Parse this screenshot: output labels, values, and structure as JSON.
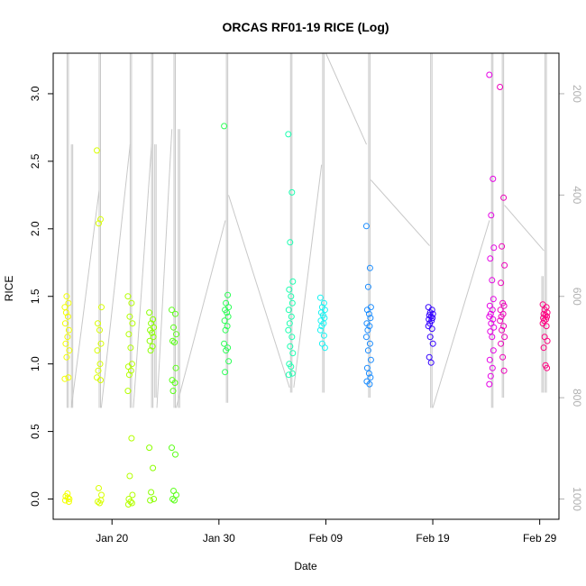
{
  "chart_data": {
    "type": "scatter",
    "title": "ORCAS RF01-19 RICE (Log)",
    "xlabel": "Date",
    "ylabel": "RICE",
    "x_ticks": [
      "Jan 20",
      "Jan 30",
      "Feb 09",
      "Feb 19",
      "Feb 29"
    ],
    "x_tick_day_offsets": [
      0,
      10,
      20,
      30,
      40
    ],
    "xlim_day_offsets": [
      -5.5,
      41.8
    ],
    "y_ticks": [
      "0.0",
      "0.5",
      "1.0",
      "1.5",
      "2.0",
      "2.5",
      "3.0"
    ],
    "ylim": [
      -0.15,
      3.3
    ],
    "y2_ticks": [
      "200",
      "400",
      "600",
      "800",
      "1000"
    ],
    "y2lim": [
      1040,
      120
    ],
    "grid": false,
    "legend": "none",
    "colors": {
      "track": "#c8c8c8",
      "axis": "#000000",
      "right_axis": "#b0b0b0"
    },
    "flights": [
      {
        "day": -4.2,
        "color": "#f2ff00",
        "values": [
          0.89,
          0.9,
          1.05,
          1.1,
          1.15,
          1.2,
          1.25,
          1.3,
          1.35,
          1.38,
          1.42,
          1.45,
          1.5,
          0.0,
          0.02,
          0.04,
          -0.02,
          -0.01,
          0.01
        ]
      },
      {
        "day": -1.2,
        "color": "#d8ff00",
        "values": [
          2.58,
          2.07,
          2.04,
          1.42,
          1.3,
          1.25,
          1.15,
          1.1,
          1.0,
          0.95,
          0.9,
          0.88,
          0.08,
          0.03,
          -0.02,
          -0.03,
          -0.01
        ]
      },
      {
        "day": 1.7,
        "color": "#b4ff00",
        "values": [
          1.5,
          1.45,
          1.35,
          1.3,
          1.22,
          1.12,
          1.0,
          0.98,
          0.95,
          0.92,
          0.8,
          0.45,
          0.17,
          0.03,
          0.0,
          -0.02,
          -0.03,
          -0.04
        ]
      },
      {
        "day": 3.7,
        "color": "#8cff00",
        "values": [
          1.38,
          1.33,
          1.3,
          1.27,
          1.25,
          1.23,
          1.2,
          1.17,
          1.13,
          1.1,
          0.38,
          0.23,
          0.05,
          0.0,
          -0.01
        ]
      },
      {
        "day": 5.8,
        "color": "#5cff1a",
        "values": [
          1.4,
          1.37,
          1.27,
          1.22,
          1.17,
          1.16,
          0.97,
          0.88,
          0.86,
          0.8,
          0.38,
          0.33,
          0.06,
          0.03,
          0.0,
          -0.01
        ]
      },
      {
        "day": 10.7,
        "color": "#2aff55",
        "values": [
          2.76,
          1.51,
          1.45,
          1.42,
          1.4,
          1.38,
          1.35,
          1.32,
          1.28,
          1.25,
          1.15,
          1.12,
          1.1,
          1.02,
          0.94
        ]
      },
      {
        "day": 16.7,
        "color": "#1affb0",
        "values": [
          2.7,
          2.27,
          1.9,
          1.61,
          1.55,
          1.5,
          1.45,
          1.4,
          1.35,
          1.3,
          1.25,
          1.2,
          1.13,
          1.08,
          1.0,
          0.98,
          0.93,
          0.92
        ]
      },
      {
        "day": 19.7,
        "color": "#18f4f4",
        "values": [
          1.49,
          1.45,
          1.42,
          1.4,
          1.38,
          1.36,
          1.34,
          1.32,
          1.3,
          1.28,
          1.25,
          1.21,
          1.15,
          1.12
        ]
      },
      {
        "day": 24.0,
        "color": "#1a8cff",
        "values": [
          2.02,
          1.71,
          1.57,
          1.42,
          1.4,
          1.37,
          1.34,
          1.3,
          1.28,
          1.25,
          1.2,
          1.15,
          1.1,
          1.03,
          0.97,
          0.93,
          0.9,
          0.87,
          0.85
        ]
      },
      {
        "day": 29.8,
        "color": "#3300ff",
        "values": [
          1.42,
          1.4,
          1.38,
          1.37,
          1.36,
          1.35,
          1.34,
          1.33,
          1.32,
          1.3,
          1.28,
          1.26,
          1.2,
          1.15,
          1.05,
          1.01
        ]
      },
      {
        "day": 35.5,
        "color": "#e600e6",
        "values": [
          3.14,
          2.37,
          2.1,
          1.86,
          1.78,
          1.62,
          1.48,
          1.43,
          1.4,
          1.37,
          1.35,
          1.33,
          1.3,
          1.27,
          1.24,
          1.2,
          1.1,
          1.03,
          0.97,
          0.91,
          0.85
        ]
      },
      {
        "day": 36.5,
        "color": "#ee00bb",
        "values": [
          3.05,
          2.23,
          1.87,
          1.73,
          1.6,
          1.45,
          1.43,
          1.4,
          1.37,
          1.35,
          1.32,
          1.28,
          1.25,
          1.2,
          1.15,
          1.05,
          0.95
        ]
      },
      {
        "day": 40.5,
        "color": "#ff0080",
        "values": [
          1.44,
          1.42,
          1.4,
          1.38,
          1.37,
          1.36,
          1.35,
          1.34,
          1.33,
          1.32,
          1.3,
          1.28,
          1.2,
          1.17,
          1.12,
          0.99,
          0.97
        ]
      }
    ],
    "altitude_tracks": [
      {
        "day": -4.2,
        "top": 120,
        "bottom": 820
      },
      {
        "day": -3.8,
        "top": 300,
        "bottom": 820
      },
      {
        "day": -1.2,
        "top": 120,
        "bottom": 820
      },
      {
        "day": 1.7,
        "top": 120,
        "bottom": 820
      },
      {
        "day": 3.7,
        "top": 120,
        "bottom": 820
      },
      {
        "day": 4.0,
        "top": 300,
        "bottom": 800
      },
      {
        "day": 5.8,
        "top": 120,
        "bottom": 820
      },
      {
        "day": 6.2,
        "top": 270,
        "bottom": 820
      },
      {
        "day": 10.7,
        "top": 120,
        "bottom": 810
      },
      {
        "day": 16.7,
        "top": 120,
        "bottom": 790
      },
      {
        "day": 19.7,
        "top": 120,
        "bottom": 790
      },
      {
        "day": 24.0,
        "top": 120,
        "bottom": 800
      },
      {
        "day": 29.8,
        "top": 120,
        "bottom": 820
      },
      {
        "day": 35.5,
        "top": 120,
        "bottom": 820
      },
      {
        "day": 36.5,
        "top": 120,
        "bottom": 800
      },
      {
        "day": 40.5,
        "top": 120,
        "bottom": 790
      },
      {
        "day": 40.2,
        "top": 560,
        "bottom": 790
      }
    ],
    "transit_lines": [
      [
        {
          "day": -3.8,
          "alt": 820
        },
        {
          "day": -1.2,
          "alt": 390
        }
      ],
      [
        {
          "day": -1.0,
          "alt": 820
        },
        {
          "day": 1.7,
          "alt": 300
        }
      ],
      [
        {
          "day": 2.0,
          "alt": 820
        },
        {
          "day": 3.7,
          "alt": 300
        }
      ],
      [
        {
          "day": 4.2,
          "alt": 820
        },
        {
          "day": 5.6,
          "alt": 270
        }
      ],
      [
        {
          "day": 6.0,
          "alt": 820
        },
        {
          "day": 10.6,
          "alt": 450
        }
      ],
      [
        {
          "day": 10.9,
          "alt": 400
        },
        {
          "day": 16.6,
          "alt": 780
        }
      ],
      [
        {
          "day": 17.0,
          "alt": 780
        },
        {
          "day": 19.6,
          "alt": 340
        }
      ],
      [
        {
          "day": 20.0,
          "alt": 120
        },
        {
          "day": 23.8,
          "alt": 300
        }
      ],
      [
        {
          "day": 24.2,
          "alt": 370
        },
        {
          "day": 29.7,
          "alt": 500
        }
      ],
      [
        {
          "day": 30.0,
          "alt": 820
        },
        {
          "day": 35.3,
          "alt": 450
        }
      ],
      [
        {
          "day": 36.7,
          "alt": 420
        },
        {
          "day": 40.4,
          "alt": 510
        }
      ]
    ]
  }
}
